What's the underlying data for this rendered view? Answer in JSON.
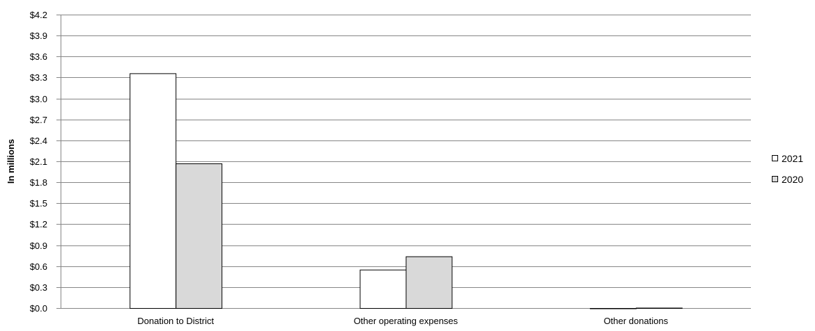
{
  "chart_data": {
    "type": "bar",
    "title": "",
    "xlabel": "",
    "ylabel": "In millions",
    "categories": [
      "Donation to District",
      "Other operating expenses",
      "Other donations"
    ],
    "series": [
      {
        "name": "2021",
        "values": [
          3.36,
          0.55,
          0.0
        ],
        "color": "#ffffff"
      },
      {
        "name": "2020",
        "values": [
          2.07,
          0.74,
          0.005
        ],
        "color": "#d9d9d9"
      }
    ],
    "ylim": [
      0,
      4.2
    ],
    "yticks": [
      0,
      0.3,
      0.6,
      0.9,
      1.2,
      1.5,
      1.8,
      2.1,
      2.4,
      2.7,
      3.0,
      3.3,
      3.6,
      3.9,
      4.2
    ],
    "ytick_labels": [
      "$0.0",
      "$0.3",
      "$0.6",
      "$0.9",
      "$1.2",
      "$1.5",
      "$1.8",
      "$2.1",
      "$2.4",
      "$2.7",
      "$3.0",
      "$3.3",
      "$3.6",
      "$3.9",
      "$4.2"
    ],
    "grid": true,
    "gridline_color": "#868686",
    "bar_border_color": "#000000",
    "legend_position": "right"
  }
}
